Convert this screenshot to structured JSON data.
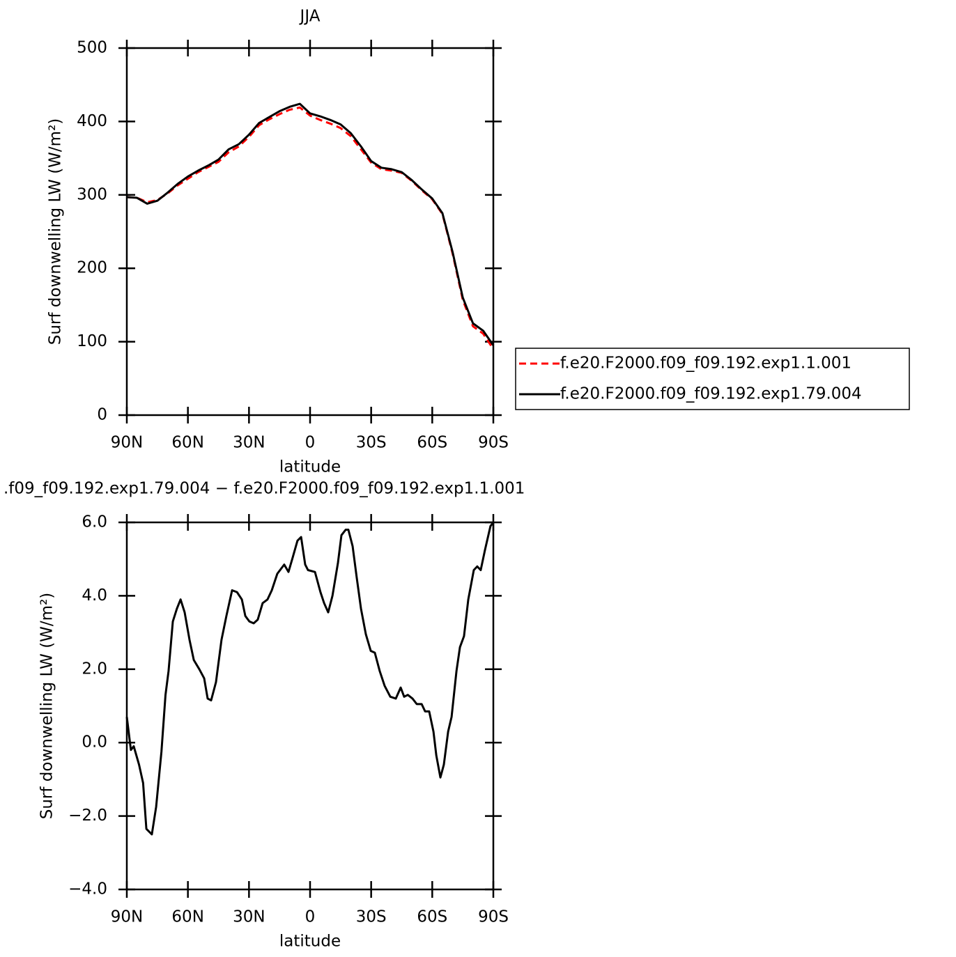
{
  "chart_data": [
    {
      "type": "line",
      "title": "JJA",
      "xlabel": "latitude",
      "ylabel": "Surf downwelling LW (W/m²)",
      "x": [
        90,
        85,
        80,
        75,
        70,
        65,
        60,
        55,
        50,
        45,
        40,
        35,
        30,
        25,
        20,
        15,
        10,
        5,
        0,
        -5,
        -10,
        -15,
        -20,
        -25,
        -30,
        -35,
        -40,
        -45,
        -50,
        -55,
        -60,
        -65,
        -70,
        -75,
        -80,
        -85,
        -90
      ],
      "series": [
        {
          "name": "f.e20.F2000.f09_f09.192.exp1.1.001",
          "color": "#ff0000",
          "dashed": true,
          "values": [
            297,
            296,
            290,
            293,
            302,
            313,
            322,
            331,
            338,
            345,
            358,
            366,
            379,
            395,
            403,
            410,
            416,
            419,
            408,
            402,
            397,
            391,
            380,
            362,
            344,
            335,
            333,
            330,
            319,
            306,
            294,
            274,
            220,
            157,
            121,
            111,
            90
          ]
        },
        {
          "name": "f.e20.F2000.f09_f09.192.exp1.79.004",
          "color": "#000000",
          "dashed": false,
          "values": [
            297,
            296,
            288,
            292,
            303,
            315,
            325,
            333,
            340,
            348,
            362,
            369,
            382,
            398,
            406,
            414,
            420,
            424,
            411,
            407,
            402,
            396,
            384,
            366,
            346,
            337,
            335,
            331,
            320,
            307,
            295,
            275,
            222,
            160,
            125,
            115,
            95
          ]
        }
      ],
      "xlim": [
        90,
        -90
      ],
      "xticks": [
        {
          "value": 90,
          "label": "90N"
        },
        {
          "value": 60,
          "label": "60N"
        },
        {
          "value": 30,
          "label": "30N"
        },
        0,
        {
          "value": -30,
          "label": "30S"
        },
        {
          "value": -60,
          "label": "60S"
        },
        {
          "value": -90,
          "label": "90S"
        }
      ],
      "ylim": [
        0,
        500
      ],
      "yticks": [
        0,
        100,
        200,
        300,
        400,
        500
      ],
      "legend": "right"
    },
    {
      "type": "line",
      "title": ".f09_f09.192.exp1.79.004 − f.e20.F2000.f09_f09.192.exp1.1.001",
      "xlabel": "latitude",
      "ylabel": "Surf downwelling LW (W/m²)",
      "x": [
        90,
        88,
        86.6,
        84,
        82,
        80.4,
        77.7,
        75.6,
        73,
        71,
        69.5,
        67.4,
        65.4,
        63.6,
        61.6,
        59.2,
        57.1,
        54.4,
        52,
        50.3,
        48.6,
        46.2,
        43.5,
        41.1,
        38.3,
        35.9,
        33.5,
        31.8,
        29.8,
        27.7,
        25.7,
        23.3,
        20.9,
        18.8,
        16.1,
        12.7,
        10.6,
        8.5,
        6.2,
        4.4,
        2.4,
        1,
        -2.4,
        -5.1,
        -6.9,
        -8.9,
        -11,
        -13.7,
        -15.4,
        -17.5,
        -18.8,
        -20.9,
        -22.9,
        -25,
        -27.4,
        -29.8,
        -31.8,
        -34.2,
        -36.6,
        -39.4,
        -42.1,
        -44.5,
        -46.2,
        -48,
        -50.3,
        -52.4,
        -54.8,
        -56.5,
        -58.5,
        -60.6,
        -62,
        -64,
        -65.7,
        -67.8,
        -69.5,
        -71.9,
        -73.6,
        -75.6,
        -77.7,
        -80.4,
        -82.1,
        -83.8,
        -85.9,
        -88.6,
        -90
      ],
      "values": [
        0.7,
        -0.2,
        -0.1,
        -0.6,
        -1.1,
        -2.35,
        -2.5,
        -1.75,
        -0.25,
        1.3,
        1.95,
        3.3,
        3.65,
        3.9,
        3.55,
        2.8,
        2.25,
        2.0,
        1.75,
        1.2,
        1.15,
        1.65,
        2.8,
        3.45,
        4.15,
        4.1,
        3.9,
        3.45,
        3.3,
        3.25,
        3.35,
        3.8,
        3.9,
        4.15,
        4.6,
        4.85,
        4.65,
        5.05,
        5.5,
        5.6,
        4.85,
        4.7,
        4.65,
        4.1,
        3.8,
        3.55,
        4.0,
        4.9,
        5.65,
        5.8,
        5.8,
        5.35,
        4.5,
        3.65,
        2.95,
        2.5,
        2.45,
        1.95,
        1.55,
        1.25,
        1.2,
        1.5,
        1.25,
        1.3,
        1.2,
        1.05,
        1.05,
        0.85,
        0.85,
        0.3,
        -0.35,
        -0.95,
        -0.6,
        0.3,
        0.7,
        1.95,
        2.6,
        2.9,
        3.9,
        4.7,
        4.8,
        4.7,
        5.25,
        5.9,
        6.0
      ],
      "color": "#000000",
      "xlim": [
        90,
        -90
      ],
      "xticks": [
        {
          "value": 90,
          "label": "90N"
        },
        {
          "value": 60,
          "label": "60N"
        },
        {
          "value": 30,
          "label": "30N"
        },
        0,
        {
          "value": -30,
          "label": "30S"
        },
        {
          "value": -60,
          "label": "60S"
        },
        {
          "value": -90,
          "label": "90S"
        }
      ],
      "ylim": [
        -4,
        6
      ],
      "yticks": [
        {
          "value": -4,
          "label": "−4.0"
        },
        {
          "value": -2,
          "label": "−2.0"
        },
        {
          "value": 0,
          "label": "0.0"
        },
        {
          "value": 2,
          "label": "2.0"
        },
        {
          "value": 4,
          "label": "4.0"
        },
        {
          "value": 6,
          "label": "6.0"
        }
      ]
    }
  ]
}
